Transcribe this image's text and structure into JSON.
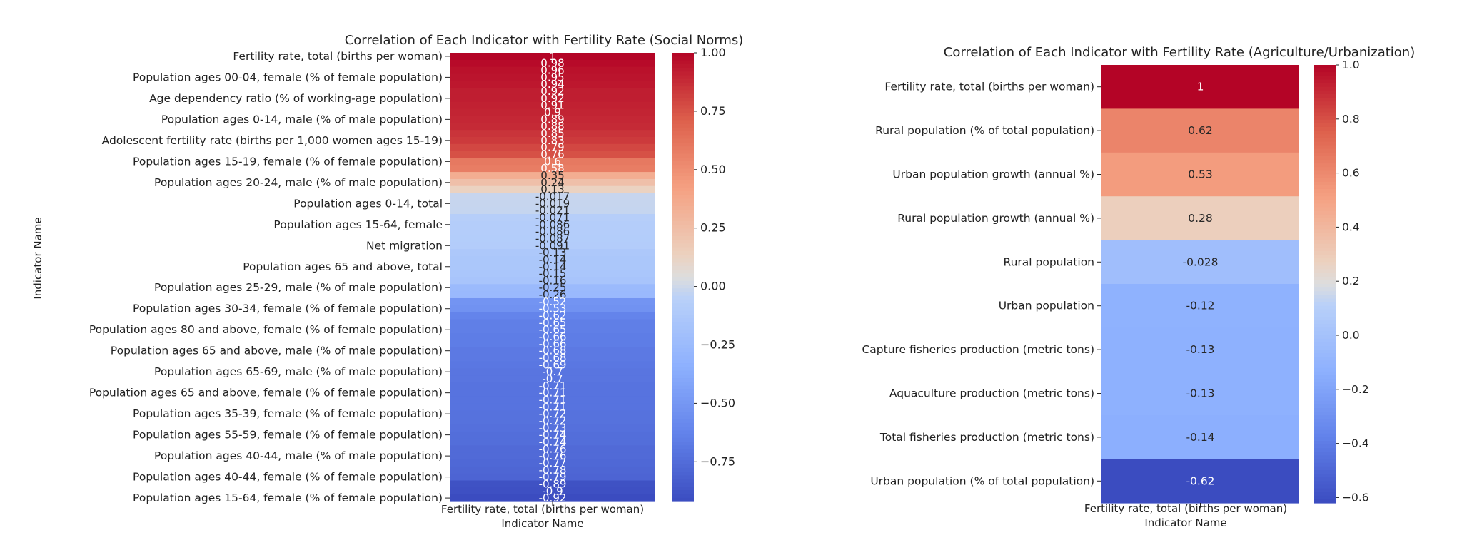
{
  "chart_data": [
    {
      "type": "heatmap",
      "title": "Correlation of Each Indicator with Fertility Rate (Social Norms)",
      "xlabel": "Indicator Name",
      "ylabel": "Indicator Name",
      "column": "Fertility rate, total (births per woman)",
      "colorbar": {
        "range": [
          -0.92,
          1.0
        ],
        "ticks": [
          1.0,
          0.75,
          0.5,
          0.25,
          0.0,
          -0.25,
          -0.5,
          -0.75
        ],
        "tick_labels": [
          "1.00",
          "0.75",
          "0.50",
          "0.25",
          "0.00",
          "−0.25",
          "−0.50",
          "−0.75"
        ],
        "colormap": "coolwarm"
      },
      "values": [
        1,
        0.98,
        0.96,
        0.95,
        0.94,
        0.92,
        0.92,
        0.91,
        0.9,
        0.89,
        0.88,
        0.85,
        0.83,
        0.79,
        0.76,
        0.6,
        0.58,
        0.35,
        0.24,
        0.13,
        -0.017,
        -0.019,
        -0.021,
        -0.071,
        -0.086,
        -0.086,
        -0.087,
        -0.091,
        -0.13,
        -0.14,
        -0.14,
        -0.15,
        -0.16,
        -0.25,
        -0.26,
        -0.52,
        -0.53,
        -0.62,
        -0.65,
        -0.65,
        -0.66,
        -0.66,
        -0.68,
        -0.68,
        -0.69,
        -0.7,
        -0.7,
        -0.71,
        -0.71,
        -0.71,
        -0.71,
        -0.72,
        -0.72,
        -0.73,
        -0.74,
        -0.74,
        -0.76,
        -0.76,
        -0.77,
        -0.78,
        -0.79,
        -0.89,
        -0.9,
        -0.92
      ],
      "value_labels": [
        "1",
        "0.98",
        "0.96",
        "0.95",
        "0.94",
        "0.92",
        "0.92",
        "0.91",
        "0.9",
        "0.89",
        "0.88",
        "0.85",
        "0.83",
        "0.79",
        "0.76",
        "0.6",
        "0.58",
        "0.35",
        "0.24",
        "0.13",
        "-0.017",
        "-0.019",
        "-0.021",
        "-0.071",
        "-0.086",
        "-0.086",
        "-0.087",
        "-0.091",
        "-0.13",
        "-0.14",
        "-0.14",
        "-0.15",
        "-0.16",
        "-0.25",
        "-0.26",
        "-0.52",
        "-0.53",
        "-0.62",
        "-0.65",
        "-0.65",
        "-0.66",
        "-0.66",
        "-0.68",
        "-0.68",
        "-0.69",
        "-0.7",
        "-0.7",
        "-0.71",
        "-0.71",
        "-0.71",
        "-0.71",
        "-0.72",
        "-0.72",
        "-0.73",
        "-0.74",
        "-0.74",
        "-0.76",
        "-0.76",
        "-0.77",
        "-0.78",
        "-0.79",
        "-0.89",
        "-0.9",
        "-0.92"
      ],
      "labeled_rows": [
        {
          "row": 0,
          "label": "Fertility rate, total (births per woman)"
        },
        {
          "row": 3,
          "label": "Population ages 00-04, female (% of female population)"
        },
        {
          "row": 6,
          "label": "Age dependency ratio (% of working-age population)"
        },
        {
          "row": 9,
          "label": "Population ages 0-14, male (% of male population)"
        },
        {
          "row": 12,
          "label": "Adolescent fertility rate (births per 1,000 women ages 15-19)"
        },
        {
          "row": 15,
          "label": "Population ages 15-19, female (% of female population)"
        },
        {
          "row": 18,
          "label": "Population ages 20-24, male (% of male population)"
        },
        {
          "row": 21,
          "label": "Population ages 0-14, total"
        },
        {
          "row": 24,
          "label": "Population ages 15-64, female"
        },
        {
          "row": 27,
          "label": "Net migration"
        },
        {
          "row": 30,
          "label": "Population ages 65 and above, total"
        },
        {
          "row": 33,
          "label": "Population ages 25-29, male (% of male population)"
        },
        {
          "row": 36,
          "label": "Population ages 30-34, female (% of female population)"
        },
        {
          "row": 39,
          "label": "Population ages 80 and above, female (% of female population)"
        },
        {
          "row": 42,
          "label": "Population ages 65 and above, male (% of male population)"
        },
        {
          "row": 45,
          "label": "Population ages 65-69, male (% of male population)"
        },
        {
          "row": 48,
          "label": "Population ages 65 and above, female (% of female population)"
        },
        {
          "row": 51,
          "label": "Population ages 35-39, female (% of female population)"
        },
        {
          "row": 54,
          "label": "Population ages 55-59, female (% of female population)"
        },
        {
          "row": 57,
          "label": "Population ages 40-44, male (% of male population)"
        },
        {
          "row": 60,
          "label": "Population ages 40-44, female (% of female population)"
        },
        {
          "row": 63,
          "label": "Population ages 15-64, female (% of female population)"
        }
      ]
    },
    {
      "type": "heatmap",
      "title": "Correlation of Each Indicator with Fertility Rate (Agriculture/Urbanization)",
      "xlabel": "Indicator Name",
      "column": "Fertility rate, total (births per woman)",
      "colorbar": {
        "range": [
          -0.62,
          1.0
        ],
        "ticks": [
          1.0,
          0.8,
          0.6,
          0.4,
          0.2,
          0.0,
          -0.2,
          -0.4,
          -0.6
        ],
        "tick_labels": [
          "1.0",
          "0.8",
          "0.6",
          "0.4",
          "0.2",
          "0.0",
          "−0.2",
          "−0.4",
          "−0.6"
        ],
        "colormap": "coolwarm"
      },
      "categories": [
        "Fertility rate, total (births per woman)",
        "Rural population (% of total population)",
        "Urban population growth (annual %)",
        "Rural population growth (annual %)",
        "Rural population",
        "Urban population",
        "Capture fisheries production (metric tons)",
        "Aquaculture production (metric tons)",
        "Total fisheries production (metric tons)",
        "Urban population (% of total population)"
      ],
      "values": [
        1,
        0.62,
        0.53,
        0.28,
        -0.028,
        -0.12,
        -0.13,
        -0.13,
        -0.14,
        -0.62
      ],
      "value_labels": [
        "1",
        "0.62",
        "0.53",
        "0.28",
        "-0.028",
        "-0.12",
        "-0.13",
        "-0.13",
        "-0.14",
        "-0.62"
      ]
    }
  ]
}
